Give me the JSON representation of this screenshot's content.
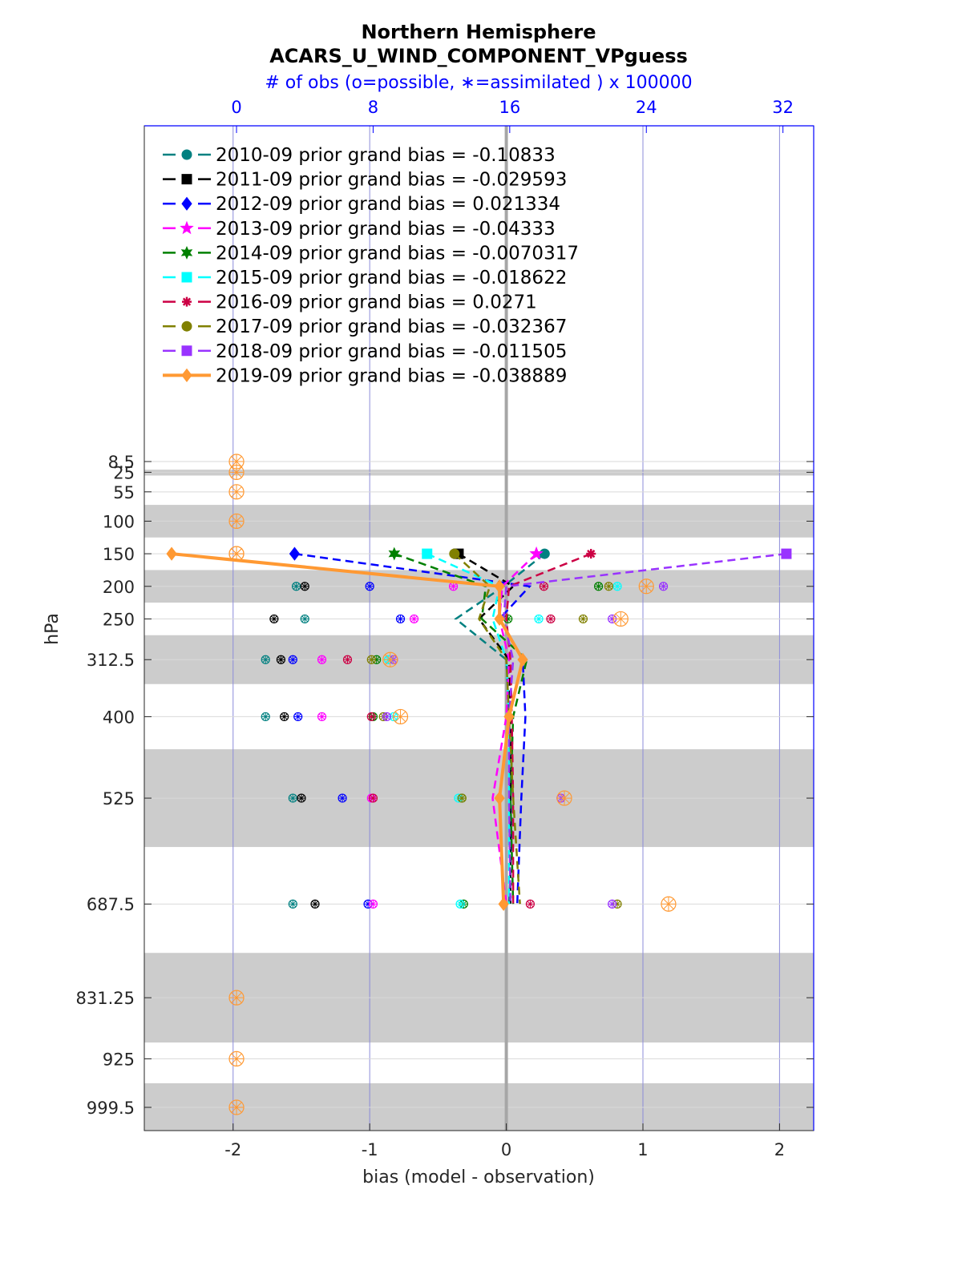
{
  "chart_data": {
    "type": "line",
    "title": "Northern Hemisphere",
    "subtitle": "ACARS_U_WIND_COMPONENT_VPguess",
    "top_axis_label": "# of obs (o=possible, ∗=assimilated ) x 100000",
    "xlabel": "bias (model - observation)",
    "ylabel": "hPa",
    "xlim": [
      -2.65,
      2.25
    ],
    "x_ticks": [
      -2,
      -1,
      0,
      1,
      2
    ],
    "x_tick_labels": [
      "-2",
      "-1",
      "0",
      "1",
      "2"
    ],
    "top_lim": [
      -5.4,
      33.8
    ],
    "top_ticks": [
      0,
      8,
      16,
      24,
      32
    ],
    "top_tick_labels": [
      "0",
      "8",
      "16",
      "24",
      "32"
    ],
    "levels": [
      8.5,
      25,
      55,
      100,
      150,
      200,
      250,
      312.5,
      400,
      525,
      687.5,
      831.25,
      925,
      999.5
    ],
    "level_labels": [
      "8.5",
      "25",
      "55",
      "100",
      "150",
      "200",
      "250",
      "312.5",
      "400",
      "525",
      "687.5",
      "831.25",
      "925",
      "999.5"
    ],
    "shaded_bands": [
      [
        21,
        30
      ],
      [
        75,
        125
      ],
      [
        175,
        225
      ],
      [
        275,
        350
      ],
      [
        450,
        600
      ],
      [
        762.5,
        900
      ],
      [
        962.5,
        1036.5
      ]
    ],
    "series": [
      {
        "name": "2010-09",
        "label": "2010-09 prior grand bias = -0.10833",
        "color": "#008080",
        "marker": "circle",
        "levels": [
          150,
          200,
          250,
          312.5,
          400,
          525,
          687.5
        ],
        "values": [
          0.28,
          -0.02,
          -0.37,
          0.0,
          0.02,
          0.05,
          0.02
        ],
        "obs_possible": [
          null,
          3.5,
          4.0,
          1.7,
          1.7,
          3.3,
          3.3
        ],
        "obs_assimilated": [
          null,
          3.5,
          4.0,
          1.7,
          1.7,
          3.3,
          3.3
        ]
      },
      {
        "name": "2011-09",
        "label": "2011-09 prior grand bias = -0.029593",
        "color": "#000000",
        "marker": "square",
        "levels": [
          150,
          200,
          250,
          312.5,
          400,
          525,
          687.5
        ],
        "values": [
          -0.35,
          0.05,
          -0.2,
          0.02,
          0.03,
          0.03,
          0.03
        ],
        "obs_possible": [
          null,
          4.0,
          2.2,
          2.6,
          2.8,
          3.8,
          4.6
        ],
        "obs_assimilated": [
          null,
          4.0,
          2.2,
          2.6,
          2.8,
          3.8,
          4.6
        ]
      },
      {
        "name": "2012-09",
        "label": "2012-09 prior grand bias = 0.021334",
        "color": "#0000ff",
        "marker": "diamond",
        "levels": [
          150,
          200,
          250,
          312.5,
          400,
          525,
          687.5
        ],
        "values": [
          -1.55,
          0.17,
          -0.05,
          0.12,
          0.14,
          0.11,
          0.08
        ],
        "obs_possible": [
          null,
          7.8,
          9.6,
          3.3,
          3.6,
          6.2,
          7.7
        ],
        "obs_assimilated": [
          null,
          7.8,
          9.6,
          3.3,
          3.6,
          6.2,
          7.7
        ]
      },
      {
        "name": "2013-09",
        "label": "2013-09 prior grand bias = -0.04333",
        "color": "#ff00ff",
        "marker": "star",
        "levels": [
          150,
          200,
          250,
          312.5,
          400,
          525,
          687.5
        ],
        "values": [
          0.22,
          -0.03,
          -0.05,
          0.02,
          0.0,
          -0.1,
          0.0
        ],
        "obs_possible": [
          null,
          12.7,
          10.4,
          5.0,
          5.0,
          7.9,
          8.0
        ],
        "obs_assimilated": [
          null,
          12.7,
          10.4,
          5.0,
          5.0,
          7.9,
          8.0
        ]
      },
      {
        "name": "2014-09",
        "label": "2014-09 prior grand bias = -0.0070317",
        "color": "#008000",
        "marker": "hexagram",
        "levels": [
          150,
          200,
          250,
          312.5,
          400,
          525,
          687.5
        ],
        "values": [
          -0.82,
          -0.15,
          -0.18,
          0.15,
          0.05,
          0.03,
          0.05
        ],
        "obs_possible": [
          null,
          21.2,
          15.9,
          8.2,
          8.0,
          13.2,
          13.3
        ],
        "obs_assimilated": [
          null,
          21.2,
          15.9,
          8.2,
          8.0,
          13.2,
          13.3
        ]
      },
      {
        "name": "2015-09",
        "label": "2015-09 prior grand bias = -0.018622",
        "color": "#00ffff",
        "marker": "square",
        "levels": [
          150,
          200,
          250,
          312.5,
          400,
          525,
          687.5
        ],
        "values": [
          -0.58,
          -0.05,
          -0.1,
          0.0,
          0.02,
          0.02,
          0.02
        ],
        "obs_possible": [
          null,
          22.3,
          17.7,
          8.9,
          9.2,
          13.0,
          13.1
        ],
        "obs_assimilated": [
          null,
          22.3,
          17.7,
          8.9,
          9.2,
          13.0,
          13.1
        ]
      },
      {
        "name": "2016-09",
        "label": "2016-09 prior grand bias = 0.0271",
        "color": "#cc0044",
        "marker": "asterisk",
        "levels": [
          150,
          200,
          250,
          312.5,
          400,
          525,
          687.5
        ],
        "values": [
          0.62,
          0.02,
          0.0,
          0.03,
          0.04,
          0.05,
          0.05
        ],
        "obs_possible": [
          null,
          18.0,
          18.4,
          6.5,
          7.9,
          8.0,
          17.2
        ],
        "obs_assimilated": [
          null,
          18.0,
          18.4,
          6.5,
          7.9,
          8.0,
          17.2
        ]
      },
      {
        "name": "2017-09",
        "label": "2017-09 prior grand bias = -0.032367",
        "color": "#808000",
        "marker": "circle",
        "levels": [
          150,
          200,
          250,
          312.5,
          400,
          525,
          687.5
        ],
        "values": [
          -0.38,
          -0.12,
          -0.2,
          0.0,
          0.02,
          0.05,
          0.1
        ],
        "obs_possible": [
          null,
          21.8,
          20.3,
          7.9,
          8.6,
          13.2,
          22.3
        ],
        "obs_assimilated": [
          null,
          21.8,
          20.3,
          7.9,
          8.6,
          13.2,
          22.3
        ]
      },
      {
        "name": "2018-09",
        "label": "2018-09 prior grand bias = -0.011505",
        "color": "#9933ff",
        "marker": "square",
        "levels": [
          150,
          200,
          250,
          312.5,
          400,
          525,
          687.5
        ],
        "values": [
          2.05,
          0.0,
          -0.02,
          0.05,
          0.02,
          0.02,
          0.03
        ],
        "obs_possible": [
          null,
          25.0,
          22.0,
          9.2,
          8.8,
          19.0,
          22.0
        ],
        "obs_assimilated": [
          null,
          25.0,
          22.0,
          9.2,
          8.8,
          19.0,
          22.0
        ]
      },
      {
        "name": "2019-09",
        "label": "2019-09 prior grand bias = -0.038889",
        "color": "#ff9933",
        "marker": "diamond",
        "solid": true,
        "levels": [
          150,
          200,
          250,
          312.5,
          400,
          525,
          687.5
        ],
        "values": [
          -2.45,
          -0.05,
          -0.05,
          0.12,
          0.02,
          -0.05,
          -0.02
        ],
        "obs_possible": [
          0,
          24.0,
          22.5,
          9.0,
          9.6,
          19.2,
          25.3
        ],
        "obs_assimilated": [
          0,
          24.0,
          22.5,
          9.0,
          9.6,
          19.2,
          25.3
        ]
      }
    ],
    "empty_levels_obs_markers": [
      8.5,
      25,
      55,
      100,
      150,
      831.25,
      925,
      999.5
    ]
  }
}
